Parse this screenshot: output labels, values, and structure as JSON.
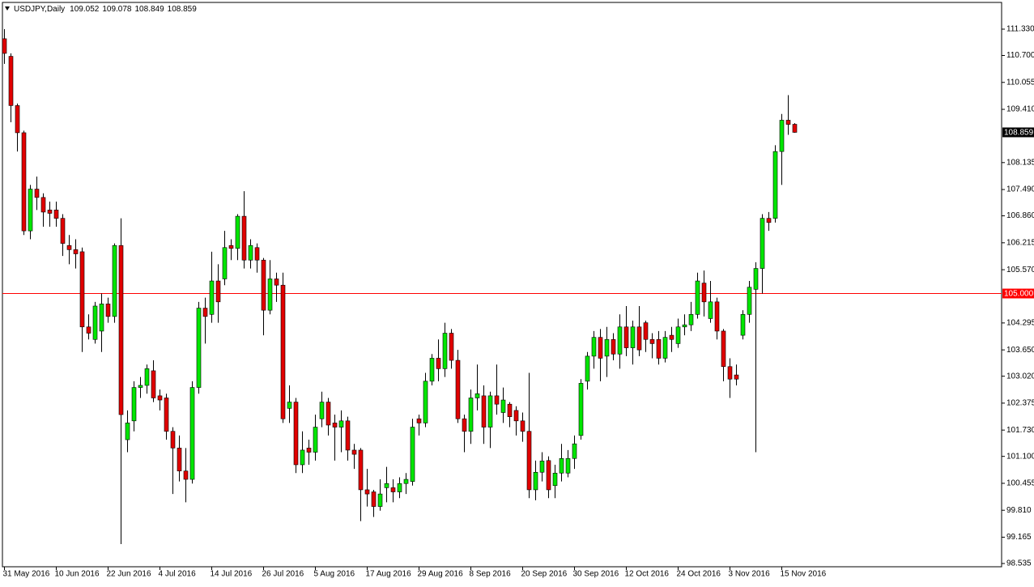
{
  "chart_data": {
    "type": "candlestick",
    "title": "USDJPY,Daily",
    "categories": [
      "31 May 2016",
      null,
      null,
      null,
      null,
      null,
      null,
      null,
      "10 Jun 2016",
      null,
      null,
      null,
      null,
      null,
      null,
      null,
      "22 Jun 2016",
      null,
      null,
      null,
      null,
      null,
      null,
      null,
      "4 Jul 2016",
      null,
      null,
      null,
      null,
      null,
      null,
      null,
      "14 Jul 2016",
      null,
      null,
      null,
      null,
      null,
      null,
      null,
      "26 Jul 2016",
      null,
      null,
      null,
      null,
      null,
      null,
      null,
      "5 Aug 2016",
      null,
      null,
      null,
      null,
      null,
      null,
      null,
      "17 Aug 2016",
      null,
      null,
      null,
      null,
      null,
      null,
      null,
      "29 Aug 2016",
      null,
      null,
      null,
      null,
      null,
      null,
      null,
      "8 Sep 2016",
      null,
      null,
      null,
      null,
      null,
      null,
      null,
      "20 Sep 2016",
      null,
      null,
      null,
      null,
      null,
      null,
      null,
      "30 Sep 2016",
      null,
      null,
      null,
      null,
      null,
      null,
      null,
      "12 Oct 2016",
      null,
      null,
      null,
      null,
      null,
      null,
      null,
      "24 Oct 2016",
      null,
      null,
      null,
      null,
      null,
      null,
      null,
      "3 Nov 2016",
      null,
      null,
      null,
      null,
      null,
      null,
      null,
      "15 Nov 2016",
      null,
      null
    ],
    "open": [
      111.1,
      110.68,
      109.5,
      108.85,
      106.5,
      107.5,
      107.3,
      107.0,
      107.0,
      106.8,
      106.15,
      106.05,
      106.0,
      104.2,
      103.9,
      104.1,
      104.75,
      104.45,
      106.15,
      101.5,
      101.95,
      102.75,
      102.8,
      103.15,
      102.55,
      102.5,
      101.7,
      101.3,
      100.75,
      100.55,
      102.75,
      104.65,
      104.5,
      105.3,
      105.35,
      106.15,
      106.08,
      106.85,
      105.8,
      106.1,
      105.8,
      104.6,
      105.35,
      105.2,
      102.25,
      102.4,
      100.9,
      101.3,
      101.2,
      102.0,
      102.4,
      101.9,
      101.8,
      101.95,
      101.25,
      101.25,
      100.3,
      100.25,
      99.9,
      100.35,
      100.35,
      100.25,
      100.45,
      100.5,
      102.0,
      101.9,
      102.9,
      103.45,
      103.2,
      104.05,
      103.4,
      102.0,
      101.7,
      102.5,
      102.55,
      101.8,
      102.55,
      102.15,
      102.35,
      102.2,
      101.95,
      101.7,
      100.3,
      100.72,
      101.0,
      100.4,
      100.7,
      100.7,
      101.05,
      101.6,
      102.9,
      103.5,
      103.95,
      103.5,
      103.9,
      103.55,
      104.2,
      103.7,
      104.2,
      104.3,
      103.9,
      103.9,
      103.45,
      104.0,
      103.8,
      104.2,
      104.25,
      104.5,
      105.25,
      104.4,
      104.8,
      104.1,
      103.25,
      103.05,
      104.0,
      104.5,
      105.1,
      105.6,
      106.8,
      106.8,
      108.4,
      109.15,
      109.052
    ],
    "high": [
      111.33,
      110.75,
      109.55,
      108.9,
      107.6,
      107.8,
      107.4,
      107.2,
      107.2,
      106.9,
      106.4,
      106.3,
      106.1,
      104.5,
      104.8,
      105.0,
      104.9,
      106.2,
      106.8,
      102.2,
      102.9,
      103.0,
      103.3,
      103.4,
      102.7,
      102.6,
      101.8,
      101.6,
      101.3,
      102.9,
      104.8,
      104.9,
      106.0,
      105.7,
      106.5,
      106.3,
      106.9,
      107.45,
      106.3,
      106.2,
      105.85,
      105.8,
      105.5,
      105.5,
      102.8,
      102.5,
      101.7,
      101.5,
      102.1,
      102.65,
      102.5,
      102.1,
      102.2,
      102.05,
      101.4,
      101.3,
      100.8,
      100.3,
      100.55,
      100.85,
      100.55,
      100.6,
      100.7,
      102.0,
      102.1,
      103.1,
      103.55,
      103.9,
      104.3,
      104.15,
      103.65,
      102.1,
      102.7,
      103.3,
      102.8,
      102.65,
      103.3,
      102.75,
      102.4,
      102.3,
      102.15,
      103.1,
      101.0,
      101.2,
      101.1,
      100.9,
      101.4,
      101.25,
      101.6,
      102.95,
      103.6,
      104.1,
      104.15,
      104.2,
      104.05,
      104.5,
      104.7,
      104.35,
      104.7,
      104.35,
      104.05,
      104.1,
      104.1,
      104.2,
      104.4,
      104.5,
      104.8,
      105.5,
      105.55,
      105.3,
      104.9,
      104.15,
      103.45,
      103.3,
      104.6,
      105.3,
      105.75,
      106.9,
      106.95,
      108.55,
      109.3,
      109.75,
      109.078
    ],
    "low": [
      110.5,
      109.1,
      108.4,
      106.4,
      106.3,
      107.0,
      106.6,
      106.6,
      106.6,
      105.9,
      105.7,
      105.6,
      103.6,
      103.9,
      103.8,
      103.6,
      104.3,
      104.3,
      99.0,
      101.2,
      101.7,
      102.5,
      102.6,
      102.4,
      102.2,
      101.5,
      100.2,
      100.5,
      100.0,
      100.45,
      102.6,
      103.8,
      104.3,
      104.3,
      105.2,
      105.8,
      105.8,
      105.6,
      105.6,
      105.5,
      104.0,
      104.5,
      104.8,
      101.9,
      101.9,
      100.7,
      100.7,
      100.9,
      101.0,
      101.8,
      101.6,
      101.0,
      101.2,
      101.0,
      100.8,
      99.55,
      99.9,
      99.65,
      99.8,
      100.0,
      100.0,
      100.1,
      100.2,
      100.4,
      101.6,
      101.8,
      102.8,
      102.9,
      103.0,
      103.2,
      101.9,
      101.2,
      101.4,
      102.2,
      101.4,
      101.3,
      102.1,
      101.9,
      101.8,
      101.6,
      101.45,
      100.1,
      100.05,
      100.5,
      100.1,
      100.1,
      100.5,
      100.6,
      100.8,
      101.5,
      102.7,
      103.2,
      102.9,
      103.0,
      103.4,
      103.2,
      103.5,
      103.3,
      103.5,
      103.6,
      103.45,
      103.3,
      103.35,
      103.6,
      103.7,
      104.0,
      104.1,
      104.4,
      104.45,
      104.3,
      103.9,
      102.9,
      102.5,
      102.8,
      103.9,
      104.3,
      101.2,
      105.0,
      106.5,
      106.7,
      107.6,
      108.8,
      108.849
    ],
    "close": [
      110.75,
      109.5,
      108.85,
      106.5,
      107.5,
      107.3,
      106.95,
      106.92,
      106.8,
      106.2,
      106.05,
      105.95,
      104.2,
      104.05,
      104.7,
      104.75,
      104.45,
      106.15,
      102.1,
      101.9,
      102.75,
      102.8,
      103.2,
      102.5,
      102.45,
      101.7,
      101.3,
      100.75,
      100.55,
      102.75,
      104.65,
      104.45,
      105.3,
      104.8,
      106.1,
      106.08,
      106.85,
      105.8,
      106.15,
      105.8,
      104.6,
      105.35,
      105.2,
      102.0,
      102.4,
      100.9,
      101.25,
      101.2,
      101.8,
      102.4,
      101.85,
      101.8,
      101.95,
      101.25,
      101.15,
      100.3,
      100.2,
      99.9,
      100.2,
      100.45,
      100.25,
      100.45,
      100.55,
      101.8,
      101.9,
      102.9,
      103.45,
      103.2,
      104.05,
      103.4,
      102.0,
      101.7,
      102.5,
      102.6,
      101.8,
      102.55,
      102.35,
      102.45,
      102.05,
      101.95,
      101.7,
      100.3,
      100.72,
      100.99,
      100.3,
      100.7,
      101.05,
      101.05,
      101.4,
      102.85,
      103.5,
      103.95,
      103.45,
      103.9,
      103.55,
      104.2,
      103.7,
      104.2,
      103.65,
      103.9,
      103.8,
      103.45,
      103.95,
      103.9,
      104.2,
      104.25,
      104.5,
      105.3,
      104.8,
      104.8,
      104.1,
      103.25,
      102.95,
      102.95,
      104.5,
      105.15,
      105.6,
      106.8,
      106.7,
      108.4,
      109.15,
      109.05,
      108.859
    ],
    "up_color": "#00e600",
    "down_color": "#e00000",
    "outline_color": "#000000",
    "ylim": [
      98.457,
      111.97
    ],
    "yticks": [
      {
        "value": 111.33,
        "label": "111.330"
      },
      {
        "value": 110.7,
        "label": "110.700"
      },
      110.055,
      {
        "value": 109.41,
        "label": "109.410"
      },
      108.135,
      {
        "value": 107.49,
        "label": "107.490"
      },
      {
        "value": 106.86,
        "label": "106.860"
      },
      106.215,
      {
        "value": 105.57,
        "label": "105.570"
      },
      104.295,
      {
        "value": 103.65,
        "label": "103.650"
      },
      {
        "value": 103.02,
        "label": "103.020"
      },
      102.375,
      {
        "value": 101.73,
        "label": "101.730"
      },
      {
        "value": 101.1,
        "label": "101.100"
      },
      100.455,
      {
        "value": 99.81,
        "label": "99.810"
      },
      99.165,
      98.535
    ],
    "hline": {
      "value": 105,
      "label": "105.000",
      "color": "#ff0000"
    }
  }
}
